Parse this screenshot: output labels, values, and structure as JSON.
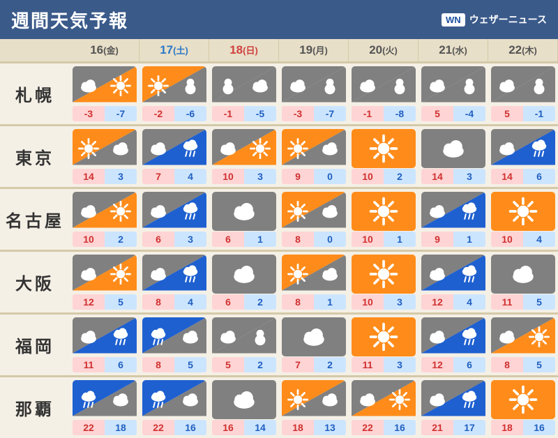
{
  "title": "週間天気予報",
  "logo": {
    "badge": "WN",
    "text": "ウェザーニュース"
  },
  "colors": {
    "header": "#3a5a8a",
    "dateDefault": "#555555",
    "dateSat": "#2a78c8",
    "dateSun": "#d04040",
    "sunny": "#ff8c1a",
    "cloudy": "#808080",
    "rain": "#1e60d0",
    "snow": "#8899aa"
  },
  "dates": [
    {
      "num": "16",
      "day": "(金)",
      "type": "wd"
    },
    {
      "num": "17",
      "day": "(土)",
      "type": "sat"
    },
    {
      "num": "18",
      "day": "(日)",
      "type": "sun"
    },
    {
      "num": "19",
      "day": "(月)",
      "type": "wd"
    },
    {
      "num": "20",
      "day": "(火)",
      "type": "wd"
    },
    {
      "num": "21",
      "day": "(水)",
      "type": "wd"
    },
    {
      "num": "22",
      "day": "(木)",
      "type": "wd"
    }
  ],
  "cities": [
    {
      "name": "札幌",
      "forecasts": [
        {
          "w": [
            "cloudy",
            "sunny"
          ],
          "hi": -3,
          "lo": -7
        },
        {
          "w": [
            "sunny",
            "snow"
          ],
          "hi": -2,
          "lo": -6
        },
        {
          "w": [
            "snow",
            "cloudy"
          ],
          "hi": -1,
          "lo": -5
        },
        {
          "w": [
            "cloudy",
            "snow"
          ],
          "hi": -3,
          "lo": -7
        },
        {
          "w": [
            "cloudy",
            "snow"
          ],
          "hi": -1,
          "lo": -8
        },
        {
          "w": [
            "cloudy",
            "snow"
          ],
          "hi": 5,
          "lo": -4
        },
        {
          "w": [
            "cloudy",
            "snow"
          ],
          "hi": 5,
          "lo": -1
        }
      ]
    },
    {
      "name": "東京",
      "forecasts": [
        {
          "w": [
            "sunny",
            "cloudy"
          ],
          "hi": 14,
          "lo": 3
        },
        {
          "w": [
            "cloudy",
            "rain"
          ],
          "hi": 7,
          "lo": 4
        },
        {
          "w": [
            "cloudy",
            "sunny"
          ],
          "hi": 10,
          "lo": 3
        },
        {
          "w": [
            "sunny",
            "cloudy"
          ],
          "hi": 9,
          "lo": 0
        },
        {
          "w": [
            "sunny"
          ],
          "hi": 10,
          "lo": 2
        },
        {
          "w": [
            "cloudy"
          ],
          "hi": 14,
          "lo": 3
        },
        {
          "w": [
            "cloudy",
            "rain"
          ],
          "hi": 14,
          "lo": 6
        }
      ]
    },
    {
      "name": "名古屋",
      "forecasts": [
        {
          "w": [
            "cloudy",
            "sunny"
          ],
          "hi": 10,
          "lo": 2
        },
        {
          "w": [
            "cloudy",
            "rain"
          ],
          "hi": 6,
          "lo": 3
        },
        {
          "w": [
            "cloudy"
          ],
          "hi": 6,
          "lo": 1
        },
        {
          "w": [
            "sunny",
            "cloudy"
          ],
          "hi": 8,
          "lo": 0
        },
        {
          "w": [
            "sunny"
          ],
          "hi": 10,
          "lo": 1
        },
        {
          "w": [
            "cloudy",
            "rain"
          ],
          "hi": 9,
          "lo": 1
        },
        {
          "w": [
            "sunny"
          ],
          "hi": 10,
          "lo": 4
        }
      ]
    },
    {
      "name": "大阪",
      "forecasts": [
        {
          "w": [
            "cloudy",
            "sunny"
          ],
          "hi": 12,
          "lo": 5
        },
        {
          "w": [
            "cloudy",
            "rain"
          ],
          "hi": 8,
          "lo": 4
        },
        {
          "w": [
            "cloudy"
          ],
          "hi": 6,
          "lo": 2
        },
        {
          "w": [
            "sunny",
            "cloudy"
          ],
          "hi": 8,
          "lo": 1
        },
        {
          "w": [
            "sunny"
          ],
          "hi": 10,
          "lo": 3
        },
        {
          "w": [
            "cloudy",
            "rain"
          ],
          "hi": 12,
          "lo": 4
        },
        {
          "w": [
            "cloudy"
          ],
          "hi": 11,
          "lo": 5
        }
      ]
    },
    {
      "name": "福岡",
      "forecasts": [
        {
          "w": [
            "cloudy",
            "rain"
          ],
          "hi": 11,
          "lo": 6
        },
        {
          "w": [
            "rain",
            "cloudy"
          ],
          "hi": 8,
          "lo": 5
        },
        {
          "w": [
            "cloudy",
            "snow"
          ],
          "hi": 5,
          "lo": 2
        },
        {
          "w": [
            "cloudy"
          ],
          "hi": 7,
          "lo": 2
        },
        {
          "w": [
            "sunny"
          ],
          "hi": 11,
          "lo": 3
        },
        {
          "w": [
            "cloudy",
            "rain"
          ],
          "hi": 12,
          "lo": 6
        },
        {
          "w": [
            "cloudy",
            "sunny"
          ],
          "hi": 8,
          "lo": 5
        }
      ]
    },
    {
      "name": "那覇",
      "forecasts": [
        {
          "w": [
            "rain",
            "cloudy"
          ],
          "hi": 22,
          "lo": 18
        },
        {
          "w": [
            "rain",
            "cloudy"
          ],
          "hi": 22,
          "lo": 16
        },
        {
          "w": [
            "cloudy"
          ],
          "hi": 16,
          "lo": 14
        },
        {
          "w": [
            "sunny",
            "cloudy"
          ],
          "hi": 18,
          "lo": 13
        },
        {
          "w": [
            "cloudy",
            "sunny"
          ],
          "hi": 22,
          "lo": 16
        },
        {
          "w": [
            "cloudy",
            "rain"
          ],
          "hi": 21,
          "lo": 17
        },
        {
          "w": [
            "sunny"
          ],
          "hi": 18,
          "lo": 16
        }
      ]
    }
  ]
}
